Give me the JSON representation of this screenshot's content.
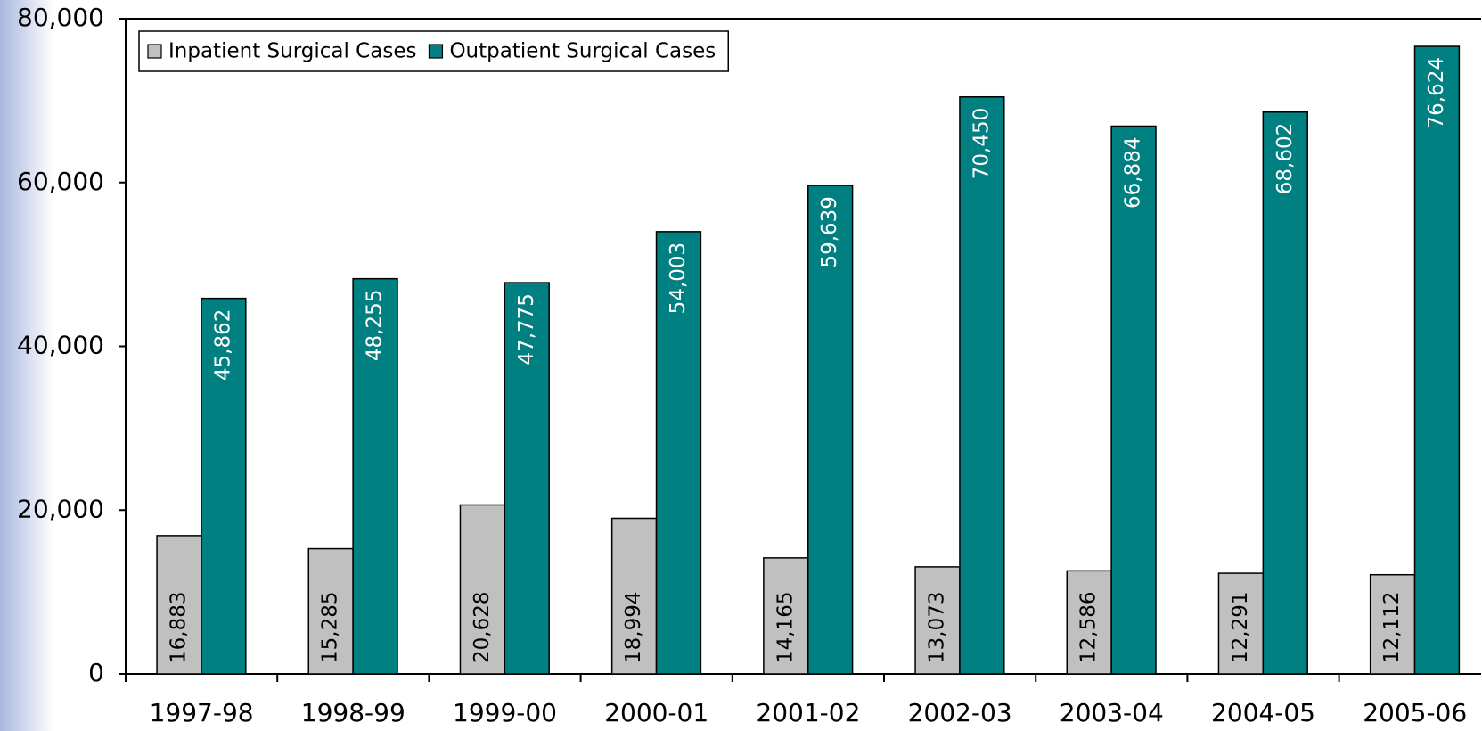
{
  "chart_data": {
    "type": "bar",
    "categories": [
      "1997-98",
      "1998-99",
      "1999-00",
      "2000-01",
      "2001-02",
      "2002-03",
      "2003-04",
      "2004-05",
      "2005-06"
    ],
    "series": [
      {
        "name": "Inpatient Surgical Cases",
        "color": "#c0c0c0",
        "values": [
          16883,
          15285,
          20628,
          18994,
          14165,
          13073,
          12586,
          12291,
          12112
        ],
        "value_labels": [
          "16,883",
          "15,285",
          "20,628",
          "18,994",
          "14,165",
          "13,073",
          "12,586",
          "12,291",
          "12,112"
        ]
      },
      {
        "name": "Outpatient Surgical Cases",
        "color": "#008080",
        "values": [
          45862,
          48255,
          47775,
          54003,
          59639,
          70450,
          66884,
          68602,
          76624
        ],
        "value_labels": [
          "45,862",
          "48,255",
          "47,775",
          "54,003",
          "59,639",
          "70,450",
          "66,884",
          "68,602",
          "76,624"
        ]
      }
    ],
    "ylim": [
      0,
      80000
    ],
    "yticks": [
      0,
      {
        "value": 20000,
        "label": "20,000"
      },
      {
        "value": 40000,
        "label": "40,000"
      },
      {
        "value": 60000,
        "label": "60,000"
      },
      {
        "value": 80000,
        "label": "80,000"
      }
    ],
    "legend": "top-left"
  }
}
